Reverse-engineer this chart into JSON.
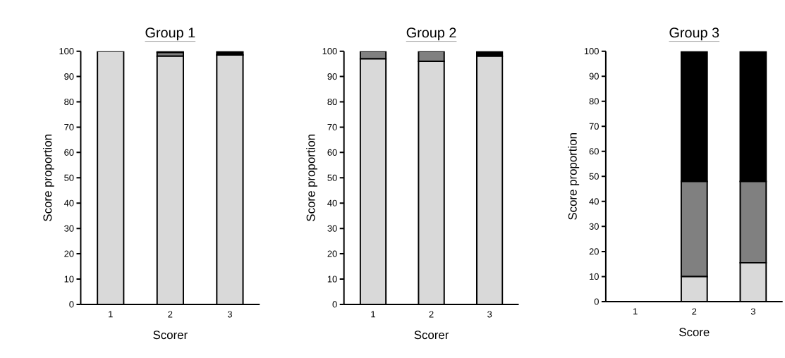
{
  "chart_data": [
    {
      "type": "bar",
      "stacked": true,
      "title": "Group 1",
      "xlabel": "Scorer",
      "ylabel": "Score proportion",
      "categories": [
        "1",
        "2",
        "3"
      ],
      "ylim": [
        0,
        100
      ],
      "yticks": [
        0,
        10,
        20,
        30,
        40,
        50,
        60,
        70,
        80,
        90,
        100
      ],
      "series": [
        {
          "color": "#d9d9d9",
          "values": [
            100,
            98,
            98.5
          ]
        },
        {
          "color": "#808080",
          "values": [
            0,
            1.5,
            0
          ]
        },
        {
          "color": "#000000",
          "values": [
            0,
            0.5,
            1.5
          ]
        }
      ]
    },
    {
      "type": "bar",
      "stacked": true,
      "title": "Group 2",
      "xlabel": "Scorer",
      "ylabel": "Score proportion",
      "categories": [
        "1",
        "2",
        "3"
      ],
      "ylim": [
        0,
        100
      ],
      "yticks": [
        0,
        10,
        20,
        30,
        40,
        50,
        60,
        70,
        80,
        90,
        100
      ],
      "series": [
        {
          "color": "#d9d9d9",
          "values": [
            97,
            96,
            98
          ]
        },
        {
          "color": "#808080",
          "values": [
            3,
            4,
            0
          ]
        },
        {
          "color": "#000000",
          "values": [
            0,
            0,
            2
          ]
        }
      ]
    },
    {
      "type": "bar",
      "stacked": true,
      "title": "Group 3",
      "xlabel": "Score",
      "ylabel": "Score proportion",
      "categories": [
        "1",
        "2",
        "3"
      ],
      "ylim": [
        0,
        100
      ],
      "yticks": [
        0,
        10,
        20,
        30,
        40,
        50,
        60,
        70,
        80,
        90,
        100
      ],
      "series": [
        {
          "color": "#d9d9d9",
          "values": [
            null,
            10,
            15.5
          ]
        },
        {
          "color": "#808080",
          "values": [
            null,
            38,
            32.5
          ]
        },
        {
          "color": "#000000",
          "values": [
            null,
            52,
            52
          ]
        }
      ]
    }
  ]
}
